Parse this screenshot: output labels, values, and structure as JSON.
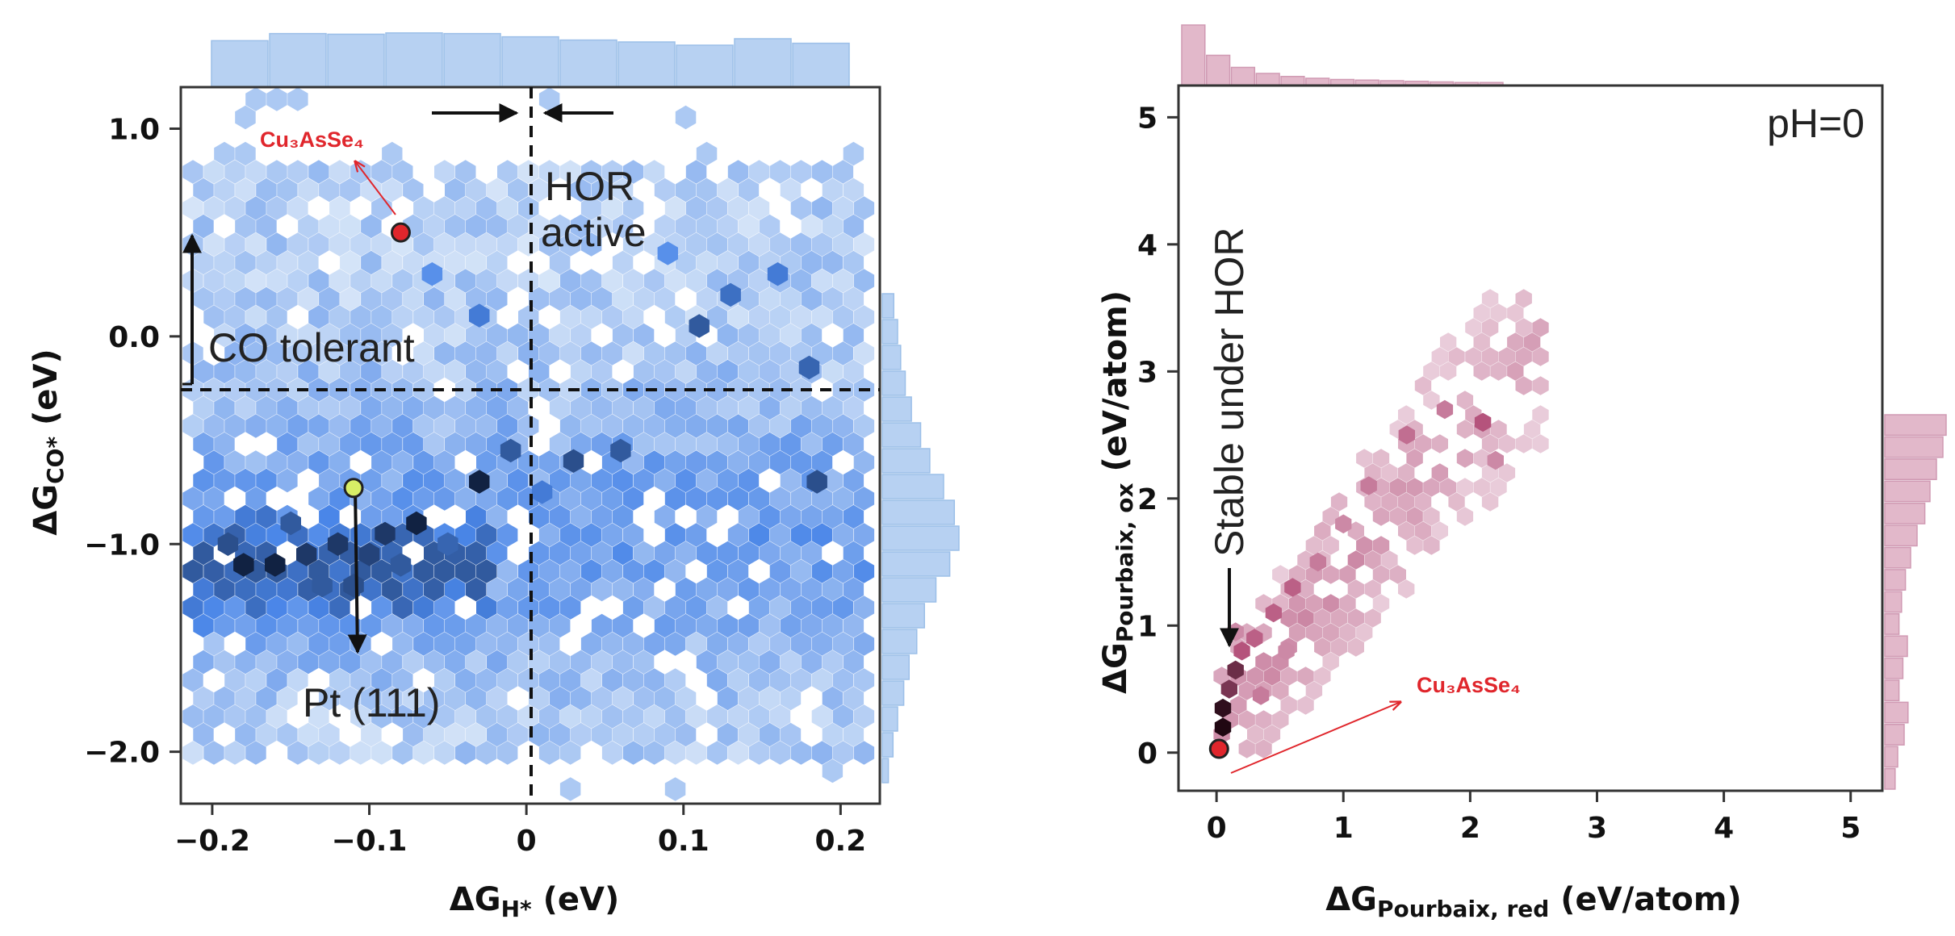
{
  "chart_data": [
    {
      "type": "heatmap",
      "subtype": "hexbin-with-marginal-histograms",
      "xlabel_main": "ΔG",
      "xlabel_sub": "H*",
      "xlabel_unit": "(eV)",
      "ylabel_main": "ΔG",
      "ylabel_sub": "CO*",
      "ylabel_unit": "(eV)",
      "xlim": [
        -0.22,
        0.225
      ],
      "ylim": [
        -2.25,
        1.2
      ],
      "xticks": [
        -0.2,
        -0.1,
        0,
        0.1,
        0.2
      ],
      "xtick_labels": [
        "−0.2",
        "−0.1",
        "0",
        "0.1",
        "0.2"
      ],
      "yticks": [
        1.0,
        0.0,
        -1.0,
        -2.0
      ],
      "ytick_labels": [
        "1.0",
        "0.0",
        "−1.0",
        "−2.0"
      ],
      "thresholds": {
        "x": 0.0,
        "y": -0.25
      },
      "colors": {
        "light": "#d6e5f8",
        "mid": "#4a86e8",
        "dark": "#0b1730",
        "hist": "#b7d1f2",
        "hist_edge": "#9cbfe8"
      },
      "cells": [
        {
          "x": -0.18,
          "y": -1.1,
          "v": 0.95
        },
        {
          "x": -0.16,
          "y": -1.1,
          "v": 0.95
        },
        {
          "x": -0.14,
          "y": -1.05,
          "v": 0.85
        },
        {
          "x": -0.12,
          "y": -1.0,
          "v": 0.85
        },
        {
          "x": -0.1,
          "y": -1.05,
          "v": 0.8
        },
        {
          "x": -0.09,
          "y": -0.95,
          "v": 0.85
        },
        {
          "x": -0.07,
          "y": -0.9,
          "v": 0.95
        },
        {
          "x": -0.19,
          "y": -1.0,
          "v": 0.75
        },
        {
          "x": -0.15,
          "y": -0.9,
          "v": 0.7
        },
        {
          "x": -0.13,
          "y": -1.2,
          "v": 0.7
        },
        {
          "x": -0.11,
          "y": -1.2,
          "v": 0.75
        },
        {
          "x": -0.08,
          "y": -1.1,
          "v": 0.7
        },
        {
          "x": -0.05,
          "y": -1.0,
          "v": 0.65
        },
        {
          "x": -0.03,
          "y": -0.7,
          "v": 0.95
        },
        {
          "x": -0.01,
          "y": -0.55,
          "v": 0.7
        },
        {
          "x": 0.01,
          "y": -0.75,
          "v": 0.55
        },
        {
          "x": 0.03,
          "y": -0.6,
          "v": 0.75
        },
        {
          "x": 0.06,
          "y": -0.55,
          "v": 0.7
        },
        {
          "x": 0.11,
          "y": 0.05,
          "v": 0.7
        },
        {
          "x": 0.13,
          "y": 0.2,
          "v": 0.6
        },
        {
          "x": 0.185,
          "y": -0.7,
          "v": 0.75
        },
        {
          "x": 0.18,
          "y": -0.15,
          "v": 0.65
        },
        {
          "x": 0.16,
          "y": 0.3,
          "v": 0.55
        },
        {
          "x": -0.03,
          "y": 0.1,
          "v": 0.55
        },
        {
          "x": -0.06,
          "y": 0.3,
          "v": 0.45
        },
        {
          "x": 0.09,
          "y": 0.4,
          "v": 0.45
        }
      ],
      "xhist": [
        0.72,
        0.83,
        0.82,
        0.84,
        0.83,
        0.78,
        0.73,
        0.7,
        0.65,
        0.75,
        0.68
      ],
      "yhist": [
        0.15,
        0.2,
        0.24,
        0.3,
        0.38,
        0.5,
        0.62,
        0.8,
        0.94,
        1.0,
        0.88,
        0.7,
        0.55,
        0.45,
        0.35,
        0.28,
        0.2,
        0.14,
        0.08
      ],
      "annotations": {
        "hor_active": [
          "HOR",
          "active"
        ],
        "co_tolerant": "CO tolerant",
        "pt111": "Pt (111)",
        "highlight": "Cu₃AsSe₄"
      },
      "points": [
        {
          "label": "Cu₃AsSe₄",
          "x": -0.08,
          "y": 0.5,
          "color": "#e0262c"
        },
        {
          "label": "Pt (111)",
          "x": -0.11,
          "y": -0.73,
          "color": "#d8ee66"
        }
      ]
    },
    {
      "type": "heatmap",
      "subtype": "hexbin-with-marginal-histograms",
      "xlabel_main": "ΔG",
      "xlabel_sub": "Pourbaix, red",
      "xlabel_unit": "(eV/atom)",
      "ylabel_main": "ΔG",
      "ylabel_sub": "Pourbaix, ox",
      "ylabel_unit": "(eV/atom)",
      "xlim": [
        -0.3,
        5.25
      ],
      "ylim": [
        -0.3,
        5.25
      ],
      "xticks": [
        0,
        1,
        2,
        3,
        4,
        5
      ],
      "xtick_labels": [
        "0",
        "1",
        "2",
        "3",
        "4",
        "5"
      ],
      "yticks": [
        0,
        1,
        2,
        3,
        4,
        5
      ],
      "ytick_labels": [
        "0",
        "1",
        "2",
        "3",
        "4",
        "5"
      ],
      "condition_label": "pH=0",
      "colors": {
        "light": "#efd9e4",
        "mid": "#b5537c",
        "dark": "#200712",
        "hist": "#e2b8ca",
        "hist_edge": "#d09ab3"
      },
      "cells": [
        {
          "x": 0.05,
          "y": 0.2,
          "v": 1.0
        },
        {
          "x": 0.05,
          "y": 0.35,
          "v": 0.95
        },
        {
          "x": 0.1,
          "y": 0.5,
          "v": 0.7
        },
        {
          "x": 0.15,
          "y": 0.65,
          "v": 0.75
        },
        {
          "x": 0.2,
          "y": 0.8,
          "v": 0.5
        },
        {
          "x": 0.3,
          "y": 0.9,
          "v": 0.45
        },
        {
          "x": 0.45,
          "y": 1.1,
          "v": 0.45
        },
        {
          "x": 0.6,
          "y": 1.3,
          "v": 0.45
        },
        {
          "x": 0.8,
          "y": 1.5,
          "v": 0.35
        },
        {
          "x": 1.0,
          "y": 1.8,
          "v": 0.3
        },
        {
          "x": 1.2,
          "y": 2.1,
          "v": 0.35
        },
        {
          "x": 1.5,
          "y": 2.5,
          "v": 0.4
        },
        {
          "x": 1.8,
          "y": 2.7,
          "v": 0.35
        },
        {
          "x": 2.1,
          "y": 2.6,
          "v": 0.5
        },
        {
          "x": 2.2,
          "y": 2.3,
          "v": 0.3
        },
        {
          "x": 0.35,
          "y": 0.45,
          "v": 0.35
        },
        {
          "x": 0.55,
          "y": 0.8,
          "v": 0.3
        },
        {
          "x": 0.15,
          "y": 0.95,
          "v": 0.3
        }
      ],
      "xhist": [
        1.0,
        0.5,
        0.3,
        0.2,
        0.15,
        0.12,
        0.1,
        0.09,
        0.08,
        0.07,
        0.06,
        0.05,
        0.05
      ],
      "yhist": [
        0.95,
        0.9,
        0.8,
        0.7,
        0.62,
        0.5,
        0.4,
        0.32,
        0.26,
        0.22,
        0.35,
        0.28,
        0.22,
        0.36,
        0.3,
        0.2,
        0.16
      ],
      "annotations": {
        "stable": "Stable under HOR",
        "highlight": "Cu₃AsSe₄"
      },
      "points": [
        {
          "label": "Cu₃AsSe₄",
          "x": 0.02,
          "y": 0.03,
          "color": "#e0262c"
        }
      ]
    }
  ]
}
